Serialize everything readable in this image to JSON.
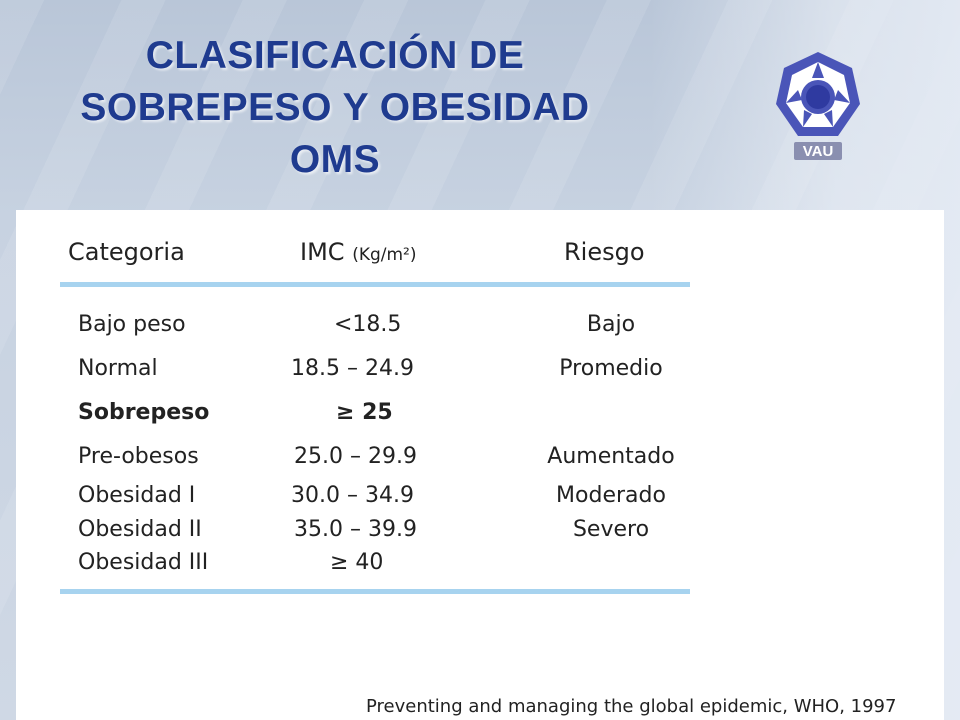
{
  "title_lines": [
    "CLASIFICACIÓN DE",
    "SOBREPESO Y OBESIDAD",
    "OMS"
  ],
  "logo": {
    "text": "VAU",
    "icon": "vau-logo-icon",
    "color": "#4a55b8"
  },
  "table": {
    "headers": {
      "category": "Categoria",
      "bmi": "IMC",
      "bmi_unit": "(Kg/m²)",
      "risk": "Riesgo"
    },
    "rows": [
      {
        "category": "Bajo peso",
        "bmi": "<18.5",
        "risk": "Bajo"
      },
      {
        "category": "Normal",
        "bmi": "18.5 – 24.9",
        "risk": "Promedio"
      },
      {
        "category": "Sobrepeso",
        "bmi": "≥ 25",
        "risk": ""
      },
      {
        "category": "Pre-obesos",
        "bmi": "25.0 – 29.9",
        "risk": "Aumentado"
      },
      {
        "category": "Obesidad I",
        "bmi": "30.0 – 34.9",
        "risk": "Moderado"
      },
      {
        "category": "Obesidad II",
        "bmi": "35.0 – 39.9",
        "risk": "Severo"
      },
      {
        "category": "Obesidad III",
        "bmi": "≥ 40",
        "risk": ""
      }
    ]
  },
  "citation": "Preventing and managing the global epidemic,  WHO, 1997",
  "colors": {
    "title": "#1f3b8f",
    "rule": "#a7d3ef"
  }
}
